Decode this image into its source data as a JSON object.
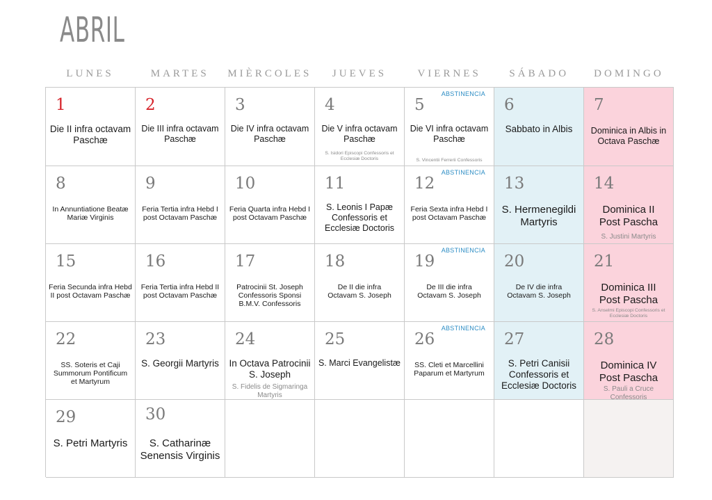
{
  "month": "ABRIL",
  "weekdays": [
    "LUNES",
    "MARTES",
    "MIÈRCOLES",
    "JUEVES",
    "VIERNES",
    "SÁBADO",
    "DOMINGO"
  ],
  "abstinence_label": "ABSTINENCIA",
  "days": [
    {
      "day": "1",
      "feast": "Die II infra octavam Paschæ",
      "comm": ""
    },
    {
      "day": "2",
      "feast": "Die III infra octavam Paschæ",
      "comm": ""
    },
    {
      "day": "3",
      "feast": "Die IV infra octavam Paschæ",
      "comm": ""
    },
    {
      "day": "4",
      "feast": "Die V infra octavam Paschæ",
      "comm": "S. Isidori Episcopi Confessoris et Ecclesiæ Doctoris"
    },
    {
      "day": "5",
      "feast": "Die VI infra octavam Paschæ",
      "comm": "S. Vincentii Ferrerii Confessoris"
    },
    {
      "day": "6",
      "feast": "Sabbato in Albis",
      "comm": ""
    },
    {
      "day": "7",
      "feast": "Dominica in Albis in Octava Paschæ",
      "comm": ""
    },
    {
      "day": "8",
      "feast": "In Annuntiatione Beatæ Mariæ Virginis",
      "comm": ""
    },
    {
      "day": "9",
      "feast": "Feria Tertia infra Hebd I post Octavam Paschæ",
      "comm": ""
    },
    {
      "day": "10",
      "feast": "Feria Quarta infra Hebd I post Octavam Paschæ",
      "comm": ""
    },
    {
      "day": "11",
      "feast": "S. Leonis I Papæ Confessoris et Ecclesiæ Doctoris",
      "comm": ""
    },
    {
      "day": "12",
      "feast": "Feria Sexta infra Hebd I post Octavam Paschæ",
      "comm": ""
    },
    {
      "day": "13",
      "feast": "S. Hermenegildi Martyris",
      "comm": ""
    },
    {
      "day": "14",
      "feast": "Dominica II Post Pascha",
      "comm": "S. Justini Martyris"
    },
    {
      "day": "15",
      "feast": "Feria Secunda infra Hebd II post Octavam Paschæ",
      "comm": ""
    },
    {
      "day": "16",
      "feast": "Feria Tertia infra Hebd II post Octavam Paschæ",
      "comm": ""
    },
    {
      "day": "17",
      "feast": "Patrocinii St. Joseph Confessoris Sponsi B.M.V. Confessoris",
      "comm": ""
    },
    {
      "day": "18",
      "feast": "De II die infra Octavam S. Joseph",
      "comm": ""
    },
    {
      "day": "19",
      "feast": "De III die infra Octavam S. Joseph",
      "comm": ""
    },
    {
      "day": "20",
      "feast": "De IV die infra Octavam S. Joseph",
      "comm": ""
    },
    {
      "day": "21",
      "feast": "Dominica III Post Pascha",
      "comm": "S. Anselmi Episcopi Confessoris et Ecclesiæ Doctoris"
    },
    {
      "day": "22",
      "feast": "SS. Soteris et Caji Summorum Pontificum et Martyrum",
      "comm": ""
    },
    {
      "day": "23",
      "feast": "S. Georgii Martyris",
      "comm": ""
    },
    {
      "day": "24",
      "feast": "In Octava Patrocinii S. Joseph",
      "comm": "S. Fidelis de Sigmaringa Martyris"
    },
    {
      "day": "25",
      "feast": "S. Marci Evangelistæ",
      "comm": ""
    },
    {
      "day": "26",
      "feast": "SS. Cleti et Marcellini Paparum et Martyrum",
      "comm": ""
    },
    {
      "day": "27",
      "feast": "S. Petri Canisii Confessoris et Ecclesiæ Doctoris",
      "comm": ""
    },
    {
      "day": "28",
      "feast": "Dominica IV Post Pascha",
      "comm": "S. Pauli a Cruce Confessoris"
    },
    {
      "day": "29",
      "feast": "S. Petri Martyris",
      "comm": ""
    },
    {
      "day": "30",
      "feast": "S. Catharinæ Senensis Virginis",
      "comm": ""
    }
  ],
  "colors": {
    "saturday_bg": "#e2f1f6",
    "sunday_bg": "#fbd3dc",
    "red_day": "#d6232a",
    "abstinence": "#2b8cc4"
  }
}
